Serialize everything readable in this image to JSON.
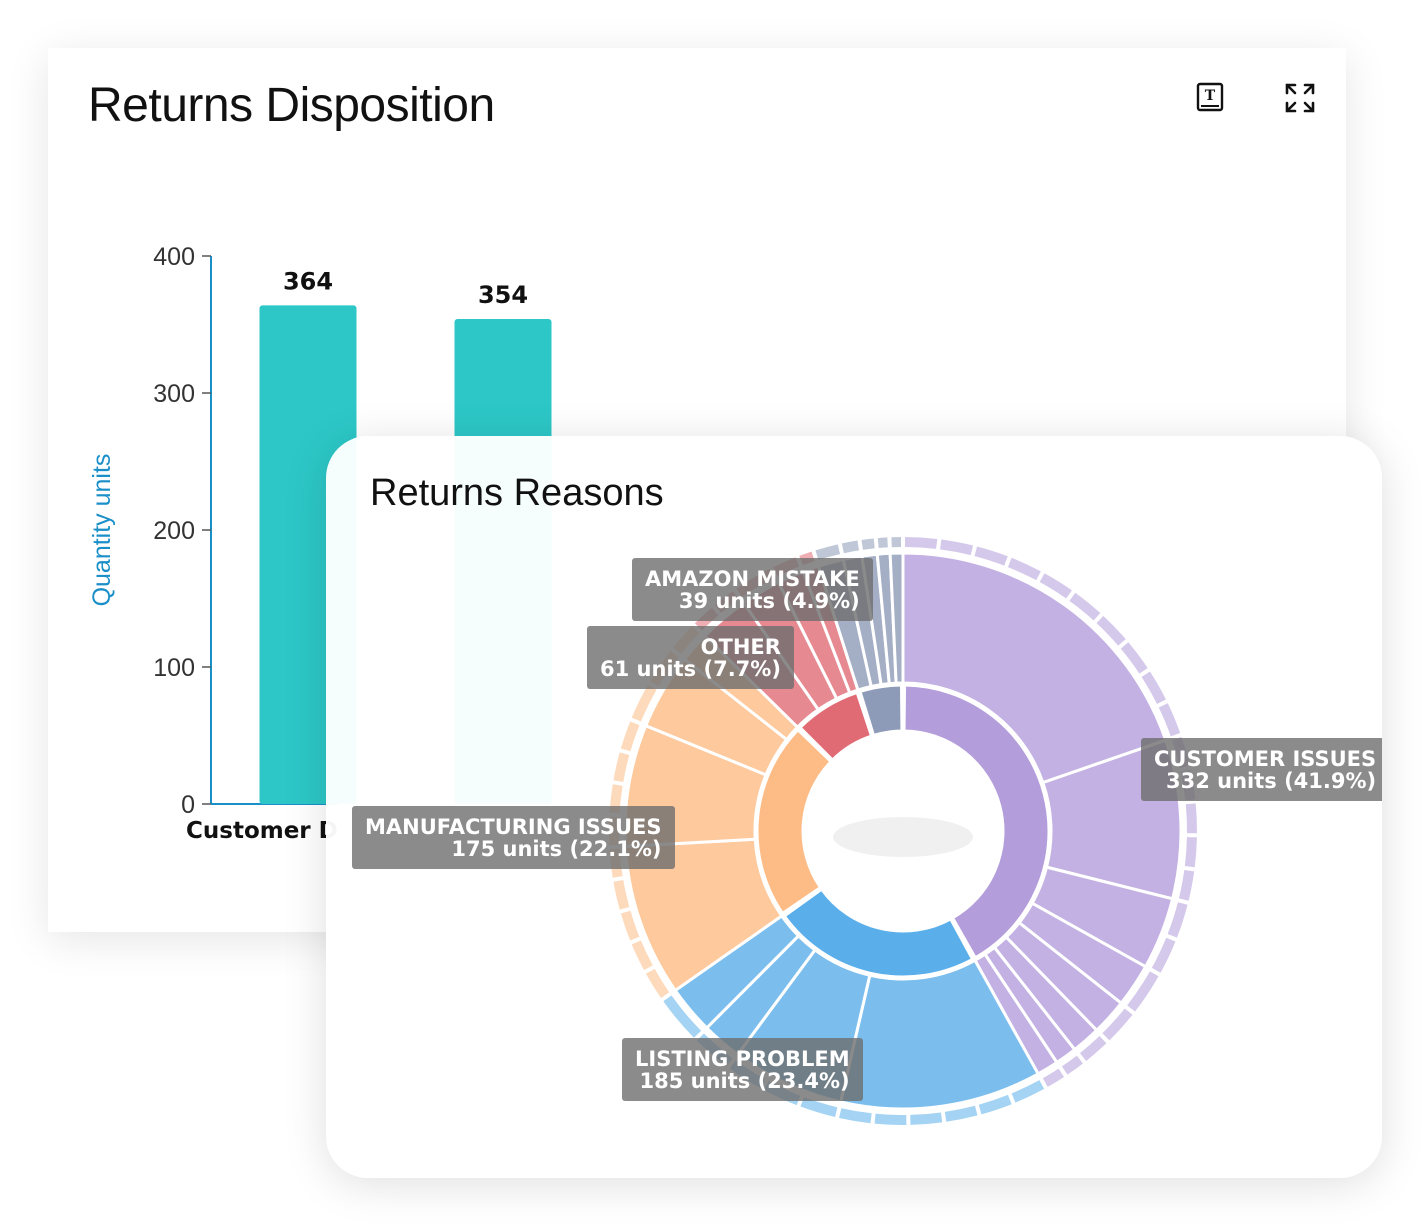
{
  "returns_disposition": {
    "title": "Returns Disposition",
    "icons": [
      "text-book-icon",
      "expand-icon"
    ],
    "accent_color": "#2dc7c7",
    "axis_color": "#1a8fc8"
  },
  "returns_reasons": {
    "title": "Returns Reasons",
    "colors": {
      "customer_issues": "#b39ddb",
      "listing_problem": "#5aaeea",
      "manufacturing_issues": "#fdbb85",
      "other": "#e06b75",
      "amazon_mistake": "#8d9bb8"
    }
  },
  "chart_data": [
    {
      "type": "bar",
      "title": "Returns Disposition",
      "categories": [
        "Customer D",
        ""
      ],
      "values": [
        364,
        354
      ],
      "ylabel": "Quantity units",
      "ylim": [
        0,
        400
      ],
      "yticks": [
        "0",
        "100",
        "200",
        "300",
        "400"
      ],
      "data_labels": [
        "364",
        "354"
      ]
    },
    {
      "type": "pie",
      "subtype": "sunburst",
      "title": "Returns Reasons",
      "series": [
        {
          "name": "CUSTOMER ISSUES",
          "value": 332,
          "percent": "41.9%",
          "label": "332 units (41.9%)"
        },
        {
          "name": "LISTING PROBLEM",
          "value": 185,
          "percent": "23.4%",
          "label": "185 units (23.4%)"
        },
        {
          "name": "MANUFACTURING ISSUES",
          "value": 175,
          "percent": "22.1%",
          "label": "175 units (22.1%)"
        },
        {
          "name": "OTHER",
          "value": 61,
          "percent": "7.7%",
          "label": "61 units (7.7%)"
        },
        {
          "name": "AMAZON MISTAKE",
          "value": 39,
          "percent": "4.9%",
          "label": "39 units (4.9%)"
        }
      ]
    }
  ]
}
